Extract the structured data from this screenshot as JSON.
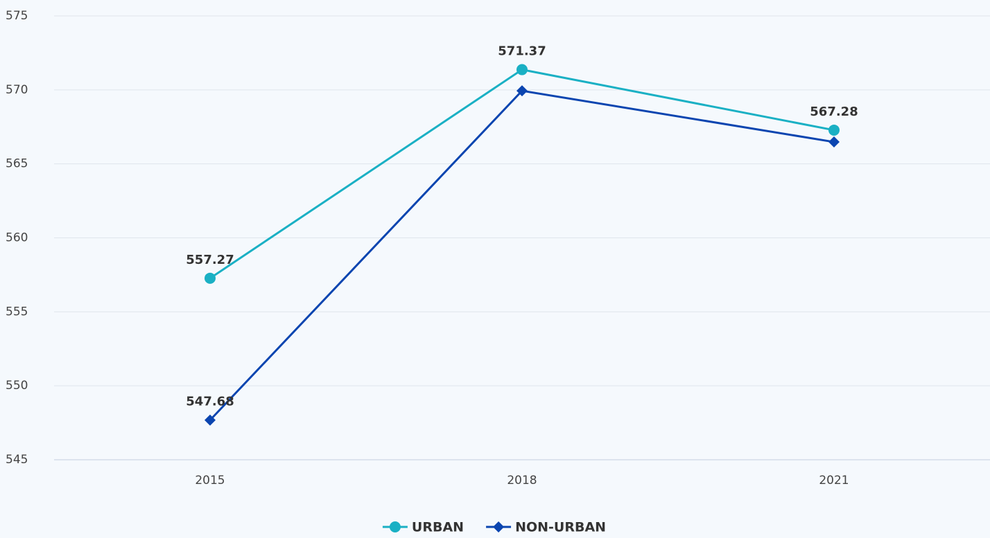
{
  "chart_data": {
    "type": "line",
    "categories": [
      "2015",
      "2018",
      "2021"
    ],
    "series": [
      {
        "name": "URBAN",
        "color": "#1ab0c4",
        "marker": "circle",
        "values": [
          557.27,
          571.37,
          567.28
        ],
        "show_labels": [
          true,
          true,
          true
        ]
      },
      {
        "name": "NON-URBAN",
        "color": "#0b45b0",
        "marker": "diamond",
        "values": [
          547.68,
          569.94,
          566.48
        ],
        "show_labels": [
          true,
          false,
          false
        ]
      }
    ],
    "ylim": [
      545,
      575
    ],
    "yticks": [
      545,
      550,
      555,
      560,
      565,
      570,
      575
    ],
    "grid": true,
    "legend": "bottom"
  }
}
